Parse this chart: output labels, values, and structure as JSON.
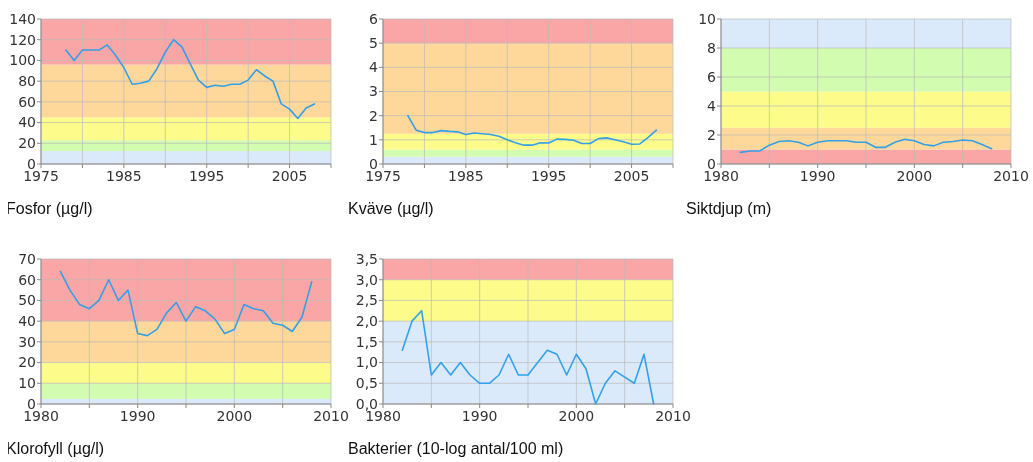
{
  "chart_data": [
    {
      "type": "line",
      "xlabel": "Fosfor (µg/l)",
      "x": [
        1978,
        1979,
        1980,
        1981,
        1982,
        1983,
        1984,
        1985,
        1986,
        1987,
        1988,
        1989,
        1990,
        1991,
        1992,
        1993,
        1994,
        1995,
        1996,
        1997,
        1998,
        1999,
        2000,
        2001,
        2002,
        2003,
        2004,
        2005,
        2006,
        2007,
        2008
      ],
      "series": [
        {
          "color": "#33a0e8",
          "values": [
            110,
            100,
            110,
            110,
            110,
            115,
            105,
            93,
            77,
            78,
            80,
            92,
            108,
            120,
            113,
            97,
            81,
            74,
            76,
            75,
            77,
            77,
            81,
            91,
            85,
            80,
            58,
            53,
            44,
            54,
            58
          ]
        }
      ],
      "xlim": [
        1975,
        2010
      ],
      "xticks": [
        1975,
        {
          "value": 1980,
          "label": null
        },
        1985,
        {
          "value": 1990,
          "label": null
        },
        1995,
        {
          "value": 2000,
          "label": null
        },
        2005,
        {
          "value": 2010,
          "label": null
        }
      ],
      "ylim": [
        0,
        140
      ],
      "yticks": [
        0,
        20,
        40,
        60,
        80,
        100,
        120,
        140
      ],
      "grid": true,
      "bands": [
        {
          "axis": "y",
          "from": 0,
          "to": 12.5,
          "color": "#dbeafb"
        },
        {
          "axis": "y",
          "from": 12.5,
          "to": 23,
          "color": "#d2fcb0"
        },
        {
          "axis": "y",
          "from": 23,
          "to": 45,
          "color": "#fdfb8a"
        },
        {
          "axis": "y",
          "from": 45,
          "to": 96,
          "color": "#fdd89a"
        },
        {
          "axis": "y",
          "from": 96,
          "to": 140,
          "color": "#fba6a6"
        }
      ]
    },
    {
      "type": "line",
      "xlabel": "Kväve (µg/l)",
      "x": [
        1978,
        1979,
        1980,
        1981,
        1982,
        1983,
        1984,
        1985,
        1986,
        1987,
        1988,
        1989,
        1990,
        1991,
        1992,
        1993,
        1994,
        1995,
        1996,
        1997,
        1998,
        1999,
        2000,
        2001,
        2002,
        2003,
        2004,
        2005,
        2006,
        2007,
        2008
      ],
      "series": [
        {
          "color": "#33a0e8",
          "values": [
            2.0,
            1.4,
            1.3,
            1.3,
            1.38,
            1.35,
            1.33,
            1.22,
            1.28,
            1.25,
            1.22,
            1.15,
            1.0,
            0.88,
            0.78,
            0.78,
            0.88,
            0.87,
            1.03,
            1.02,
            0.98,
            0.85,
            0.85,
            1.05,
            1.08,
            1.0,
            0.92,
            0.82,
            0.83,
            1.1,
            1.4
          ]
        }
      ],
      "xlim": [
        1975,
        2010
      ],
      "xticks": [
        1975,
        {
          "value": 1980,
          "label": null
        },
        1985,
        {
          "value": 1990,
          "label": null
        },
        1995,
        {
          "value": 2000,
          "label": null
        },
        2005,
        {
          "value": 2010,
          "label": null
        }
      ],
      "ylim": [
        0,
        6
      ],
      "yticks": [
        0,
        1,
        2,
        3,
        4,
        5,
        6
      ],
      "grid": true,
      "bands": [
        {
          "axis": "y",
          "from": 0,
          "to": 0.3,
          "color": "#dbeafb"
        },
        {
          "axis": "y",
          "from": 0.3,
          "to": 0.6,
          "color": "#d2fcb0"
        },
        {
          "axis": "y",
          "from": 0.6,
          "to": 1.25,
          "color": "#fdfb8a"
        },
        {
          "axis": "y",
          "from": 1.25,
          "to": 5,
          "color": "#fdd89a"
        },
        {
          "axis": "y",
          "from": 5,
          "to": 6,
          "color": "#fba6a6"
        }
      ]
    },
    {
      "type": "line",
      "xlabel": "Siktdjup (m)",
      "x": [
        1982,
        1983,
        1984,
        1985,
        1986,
        1987,
        1988,
        1989,
        1990,
        1991,
        1992,
        1993,
        1994,
        1995,
        1996,
        1997,
        1998,
        1999,
        2000,
        2001,
        2002,
        2003,
        2004,
        2005,
        2006,
        2007,
        2008
      ],
      "series": [
        {
          "color": "#33a0e8",
          "values": [
            0.8,
            0.9,
            0.9,
            1.3,
            1.55,
            1.6,
            1.5,
            1.25,
            1.5,
            1.6,
            1.6,
            1.6,
            1.5,
            1.5,
            1.15,
            1.15,
            1.5,
            1.7,
            1.6,
            1.35,
            1.25,
            1.5,
            1.55,
            1.65,
            1.6,
            1.35,
            1.05
          ]
        }
      ],
      "xlim": [
        1980,
        2010
      ],
      "xticks": [
        1980,
        {
          "value": 1985,
          "label": null
        },
        1990,
        {
          "value": 1995,
          "label": null
        },
        2000,
        {
          "value": 2005,
          "label": null
        },
        2010
      ],
      "ylim": [
        0,
        10
      ],
      "yticks": [
        0,
        2,
        4,
        6,
        8,
        10
      ],
      "grid": true,
      "bands": [
        {
          "axis": "y",
          "from": 0,
          "to": 1,
          "color": "#fba6a6"
        },
        {
          "axis": "y",
          "from": 1,
          "to": 2.5,
          "color": "#fdd89a"
        },
        {
          "axis": "y",
          "from": 2.5,
          "to": 5,
          "color": "#fdfb8a"
        },
        {
          "axis": "y",
          "from": 5,
          "to": 8,
          "color": "#d2fcb0"
        },
        {
          "axis": "y",
          "from": 8,
          "to": 10,
          "color": "#dbeafb"
        }
      ]
    },
    {
      "type": "line",
      "xlabel": "Klorofyll (µg/l)",
      "x": [
        1982,
        1983,
        1984,
        1985,
        1986,
        1987,
        1988,
        1989,
        1990,
        1991,
        1992,
        1993,
        1994,
        1995,
        1996,
        1997,
        1998,
        1999,
        2000,
        2001,
        2002,
        2003,
        2004,
        2005,
        2006,
        2007,
        2008
      ],
      "series": [
        {
          "color": "#33a0e8",
          "values": [
            64,
            55,
            48,
            46,
            50,
            60,
            50,
            55,
            34,
            33,
            36,
            44,
            49,
            40,
            47,
            45,
            41,
            34,
            36,
            48,
            46,
            45,
            39,
            38,
            35,
            42,
            59
          ]
        }
      ],
      "xlim": [
        1980,
        2010
      ],
      "xticks": [
        1980,
        {
          "value": 1985,
          "label": null
        },
        1990,
        {
          "value": 1995,
          "label": null
        },
        2000,
        {
          "value": 2005,
          "label": null
        },
        2010
      ],
      "ylim": [
        0,
        70
      ],
      "yticks": [
        0,
        10,
        20,
        30,
        40,
        50,
        60,
        70
      ],
      "grid": true,
      "bands": [
        {
          "axis": "y",
          "from": 0,
          "to": 2.5,
          "color": "#dbeafb"
        },
        {
          "axis": "y",
          "from": 2.5,
          "to": 10,
          "color": "#d2fcb0"
        },
        {
          "axis": "y",
          "from": 10,
          "to": 20,
          "color": "#fdfb8a"
        },
        {
          "axis": "y",
          "from": 20,
          "to": 40,
          "color": "#fdd89a"
        },
        {
          "axis": "y",
          "from": 40,
          "to": 70,
          "color": "#fba6a6"
        }
      ]
    },
    {
      "type": "line",
      "xlabel": "Bakterier (10-log antal/100 ml)",
      "x": [
        1982,
        1983,
        1984,
        1985,
        1986,
        1987,
        1988,
        1989,
        1990,
        1991,
        1992,
        1993,
        1994,
        1995,
        1996,
        1997,
        1998,
        1999,
        2000,
        2001,
        2002,
        2003,
        2004,
        2005,
        2006,
        2007,
        2008
      ],
      "series": [
        {
          "color": "#33a0e8",
          "values": [
            1.3,
            2.0,
            2.25,
            0.7,
            1.0,
            0.7,
            1.0,
            0.7,
            0.5,
            0.5,
            0.7,
            1.2,
            0.7,
            0.7,
            1.0,
            1.3,
            1.2,
            0.7,
            1.2,
            0.85,
            0.0,
            0.5,
            0.8,
            0.65,
            0.5,
            1.2,
            0.0
          ]
        }
      ],
      "xlim": [
        1980,
        2010
      ],
      "xticks": [
        1980,
        {
          "value": 1985,
          "label": null
        },
        1990,
        {
          "value": 1995,
          "label": null
        },
        2000,
        {
          "value": 2005,
          "label": null
        },
        2010
      ],
      "ylim": [
        0,
        3.5
      ],
      "yticks": [
        {
          "value": 0,
          "label": "0,0"
        },
        {
          "value": 0.5,
          "label": "0,5"
        },
        {
          "value": 1,
          "label": "1,0"
        },
        {
          "value": 1.5,
          "label": "1,5"
        },
        {
          "value": 2,
          "label": "2,0"
        },
        {
          "value": 2.5,
          "label": "2,5"
        },
        {
          "value": 3,
          "label": "3,0"
        },
        {
          "value": 3.5,
          "label": "3,5"
        }
      ],
      "grid": true,
      "bands": [
        {
          "axis": "y",
          "from": 0,
          "to": 2,
          "color": "#dbeafb"
        },
        {
          "axis": "y",
          "from": 2,
          "to": 3,
          "color": "#fdfb8a"
        },
        {
          "axis": "y",
          "from": 3,
          "to": 3.5,
          "color": "#fba6a6"
        }
      ]
    }
  ]
}
